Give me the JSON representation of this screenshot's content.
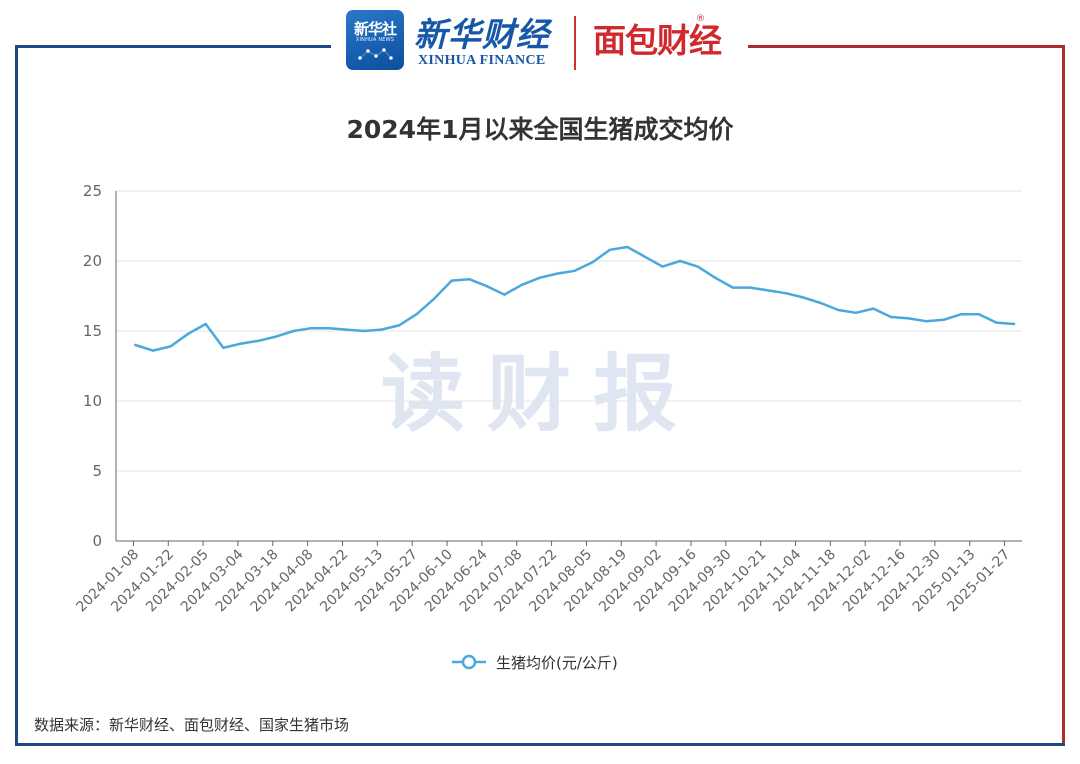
{
  "branding": {
    "xinhuashe_logo": "新华社",
    "xinhuashe_sub": "XINHUA NEWS",
    "xinhua_finance_cn": "新华财经",
    "xinhua_finance_en": "XINHUA FINANCE",
    "mianbao_logo": "面包财经",
    "registered_mark": "®"
  },
  "watermark": "读财报",
  "source_note": "数据来源：新华财经、面包财经、国家生猪市场",
  "colors": {
    "series": "#4aa8dc",
    "frame_blue": "#1d4a86",
    "frame_red": "#b02a30"
  },
  "chart_data": {
    "type": "line",
    "title": "2024年1月以来全国生猪成交均价",
    "xlabel": "",
    "ylabel": "",
    "ylim": [
      0,
      25
    ],
    "yticks": [
      0,
      5,
      10,
      15,
      20,
      25
    ],
    "grid": true,
    "legend_position": "bottom-center",
    "tick_labels": [
      "2024-01-08",
      "2024-01-22",
      "2024-02-05",
      "2024-03-04",
      "2024-03-18",
      "2024-04-08",
      "2024-04-22",
      "2024-05-13",
      "2024-05-27",
      "2024-06-10",
      "2024-06-24",
      "2024-07-08",
      "2024-07-22",
      "2024-08-05",
      "2024-08-19",
      "2024-09-02",
      "2024-09-16",
      "2024-09-30",
      "2024-10-21",
      "2024-11-04",
      "2024-11-18",
      "2024-12-02",
      "2024-12-16",
      "2024-12-30",
      "2025-01-13",
      "2025-01-27"
    ],
    "series": [
      {
        "name": "生猪均价(元/公斤)",
        "values": [
          14.0,
          13.6,
          13.9,
          14.8,
          15.5,
          13.8,
          14.1,
          14.3,
          14.6,
          15.0,
          15.2,
          15.2,
          15.1,
          15.0,
          15.1,
          15.4,
          16.2,
          17.3,
          18.6,
          18.7,
          18.2,
          17.6,
          18.3,
          18.8,
          19.1,
          19.3,
          19.9,
          20.8,
          21.0,
          20.3,
          19.6,
          20.0,
          19.6,
          18.8,
          18.1,
          18.1,
          17.9,
          17.7,
          17.4,
          17.0,
          16.5,
          16.3,
          16.6,
          16.0,
          15.9,
          15.7,
          15.8,
          16.2,
          16.2,
          15.6,
          15.5
        ]
      }
    ]
  }
}
